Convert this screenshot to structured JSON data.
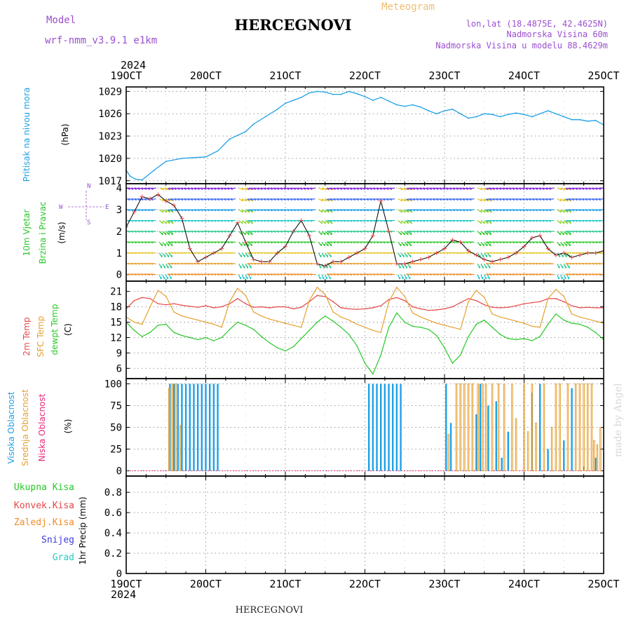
{
  "header": {
    "model_label": "Model",
    "model_name": "wrf-nmm_v3.9.1 e1km",
    "title": "HERCEGNOVI",
    "subtitle": "Meteogram",
    "lonlat": "lon,lat (18.4875E, 42.4625N)",
    "altitude": "Nadmorska Visina 60m",
    "model_altitude": "Nadmorska Visina u modelu 88.4629m",
    "footer_title": "HERCEGNOVI",
    "watermark": "made by Angel",
    "year_label": "2024"
  },
  "colors": {
    "pressure": "#1ea0e6",
    "temp2m": "#e64646",
    "sfc": "#e6a032",
    "dew": "#28c828",
    "high_cloud": "#1ea0e6",
    "mid_cloud": "#e6a032",
    "low_cloud": "#e6287a",
    "title_purple": "#9b4fd0",
    "orange_label": "#f08c28",
    "snow": "#3c3cdc",
    "hail": "#28c8c8"
  },
  "x_axis": {
    "ticks": [
      "19OCT",
      "20OCT",
      "21OCT",
      "22OCT",
      "23OCT",
      "24OCT",
      "25OCT"
    ],
    "range_days": [
      19,
      25
    ]
  },
  "chart_data": [
    {
      "id": "pressure",
      "type": "line",
      "ylabel_title": "Pritisak na nivou mora",
      "ylabel_unit": "(hPa)",
      "yticks": [
        "1017",
        "1020",
        "1023",
        "1026",
        "1029"
      ],
      "ylim": [
        1016.6,
        1029.6
      ],
      "grid": true,
      "series": [
        {
          "x": [
            19.0,
            19.05,
            19.12,
            19.2,
            19.35,
            19.5,
            19.7,
            19.85,
            20.0,
            20.15,
            20.3,
            20.5,
            20.6,
            20.75,
            20.9,
            21.0,
            21.1,
            21.2,
            21.3,
            21.4,
            21.5,
            21.6,
            21.7,
            21.8,
            21.9,
            22.0,
            22.1,
            22.2,
            22.3,
            22.4,
            22.5,
            22.6,
            22.7,
            22.8,
            22.9,
            23.0,
            23.1,
            23.2,
            23.3,
            23.4,
            23.5,
            23.6,
            23.7,
            23.8,
            23.9,
            24.0,
            24.1,
            24.2,
            24.3,
            24.4,
            24.5,
            24.6,
            24.7,
            24.8,
            24.9,
            25.0
          ],
          "values": [
            1018.4,
            1017.6,
            1017.2,
            1017.1,
            1018.4,
            1019.6,
            1020.0,
            1020.1,
            1020.2,
            1021.0,
            1022.6,
            1023.6,
            1024.6,
            1025.6,
            1026.6,
            1027.4,
            1027.8,
            1028.2,
            1028.8,
            1029.0,
            1028.9,
            1028.6,
            1028.6,
            1029.0,
            1028.7,
            1028.3,
            1027.8,
            1028.2,
            1027.7,
            1027.2,
            1027.0,
            1027.2,
            1026.9,
            1026.4,
            1026.0,
            1026.4,
            1026.6,
            1026.0,
            1025.4,
            1025.6,
            1026.0,
            1025.9,
            1025.6,
            1025.9,
            1026.1,
            1025.9,
            1025.6,
            1026.0,
            1026.4,
            1026.0,
            1025.6,
            1025.2,
            1025.2,
            1025.0,
            1025.1,
            1024.5
          ]
        }
      ]
    },
    {
      "id": "wind",
      "type": "line",
      "ylabel_title": "10m Vjetar",
      "ylabel_title2": "Brzina i Pravac",
      "ylabel_unit": "(m/s)",
      "compass": [
        "N",
        "E",
        "S",
        "W"
      ],
      "yticks": [
        "0",
        "1",
        "2",
        "3",
        "4"
      ],
      "ylim": [
        -0.3,
        4.2
      ],
      "grid": true,
      "series": [
        {
          "name": "speed",
          "x": [
            19.0,
            19.1,
            19.2,
            19.3,
            19.4,
            19.5,
            19.6,
            19.7,
            19.8,
            19.9,
            20.0,
            20.1,
            20.2,
            20.3,
            20.4,
            20.5,
            20.6,
            20.7,
            20.8,
            20.9,
            21.0,
            21.1,
            21.2,
            21.3,
            21.4,
            21.5,
            21.6,
            21.7,
            21.8,
            21.9,
            22.0,
            22.1,
            22.2,
            22.3,
            22.4,
            22.5,
            22.6,
            22.7,
            22.8,
            22.9,
            23.0,
            23.1,
            23.2,
            23.3,
            23.4,
            23.5,
            23.6,
            23.7,
            23.8,
            23.9,
            24.0,
            24.1,
            24.2,
            24.3,
            24.4,
            24.5,
            24.6,
            24.7,
            24.8,
            24.9,
            25.0
          ],
          "values": [
            2.2,
            2.9,
            3.6,
            3.5,
            3.7,
            3.4,
            3.2,
            2.6,
            1.2,
            0.6,
            0.8,
            1.0,
            1.2,
            1.8,
            2.4,
            1.5,
            0.7,
            0.6,
            0.6,
            1.0,
            1.3,
            2.0,
            2.5,
            1.8,
            0.5,
            0.4,
            0.6,
            0.6,
            0.8,
            1.0,
            1.2,
            1.8,
            3.4,
            2.0,
            0.5,
            0.5,
            0.6,
            0.7,
            0.8,
            1.0,
            1.2,
            1.6,
            1.5,
            1.1,
            0.9,
            0.7,
            0.6,
            0.7,
            0.8,
            1.0,
            1.3,
            1.7,
            1.8,
            1.2,
            0.9,
            1.0,
            0.8,
            0.9,
            1.0,
            1.0,
            1.1
          ]
        }
      ]
    },
    {
      "id": "temperature",
      "type": "line",
      "ylabel_title": "2m Temp",
      "ylabel_title2": "SFC Temp",
      "ylabel_title3": "dewpt Temp",
      "ylabel_unit": "(C)",
      "yticks": [
        "6",
        "9",
        "12",
        "15",
        "18",
        "21"
      ],
      "ylim": [
        4.0,
        23.0
      ],
      "grid": true,
      "series": [
        {
          "name": "2m Temp",
          "x": [
            19.0,
            19.1,
            19.2,
            19.3,
            19.4,
            19.5,
            19.6,
            19.7,
            19.8,
            19.9,
            20.0,
            20.1,
            20.2,
            20.3,
            20.4,
            20.5,
            20.6,
            20.7,
            20.8,
            20.9,
            21.0,
            21.1,
            21.2,
            21.3,
            21.4,
            21.5,
            21.6,
            21.7,
            21.8,
            21.9,
            22.0,
            22.1,
            22.2,
            22.3,
            22.4,
            22.5,
            22.6,
            22.7,
            22.8,
            22.9,
            23.0,
            23.1,
            23.2,
            23.3,
            23.4,
            23.5,
            23.6,
            23.7,
            23.8,
            23.9,
            24.0,
            24.1,
            24.2,
            24.3,
            24.4,
            24.5,
            24.6,
            24.7,
            24.8,
            24.9,
            25.0
          ],
          "values": [
            17.6,
            19.2,
            19.8,
            19.6,
            18.6,
            18.4,
            18.6,
            18.3,
            18.1,
            17.9,
            18.2,
            17.8,
            18.0,
            18.6,
            19.6,
            18.6,
            17.9,
            18.0,
            17.8,
            18.0,
            18.0,
            17.6,
            17.9,
            19.0,
            20.2,
            20.0,
            19.0,
            17.8,
            17.6,
            17.5,
            17.6,
            17.8,
            18.2,
            19.4,
            19.8,
            19.2,
            18.0,
            17.6,
            17.3,
            17.4,
            17.6,
            18.0,
            18.8,
            19.6,
            19.2,
            18.4,
            17.9,
            17.8,
            17.9,
            18.2,
            18.6,
            18.8,
            19.0,
            19.6,
            19.6,
            19.0,
            18.2,
            17.8,
            17.9,
            17.8,
            17.8
          ]
        },
        {
          "name": "SFC Temp",
          "x": [
            19.0,
            19.1,
            19.2,
            19.3,
            19.4,
            19.5,
            19.6,
            19.7,
            19.8,
            19.9,
            20.0,
            20.1,
            20.2,
            20.3,
            20.4,
            20.5,
            20.6,
            20.7,
            20.8,
            20.9,
            21.0,
            21.1,
            21.2,
            21.3,
            21.4,
            21.5,
            21.6,
            21.7,
            21.8,
            21.9,
            22.0,
            22.1,
            22.2,
            22.3,
            22.4,
            22.5,
            22.6,
            22.7,
            22.8,
            22.9,
            23.0,
            23.1,
            23.2,
            23.3,
            23.4,
            23.5,
            23.6,
            23.7,
            23.8,
            23.9,
            24.0,
            24.1,
            24.2,
            24.3,
            24.4,
            24.5,
            24.6,
            24.7,
            24.8,
            24.9,
            25.0
          ],
          "values": [
            16.0,
            15.0,
            14.6,
            18.0,
            21.2,
            20.0,
            17.0,
            16.2,
            15.8,
            15.4,
            15.0,
            14.6,
            14.0,
            19.0,
            21.6,
            20.2,
            17.0,
            16.2,
            15.6,
            15.2,
            14.8,
            14.4,
            14.0,
            19.2,
            21.8,
            20.4,
            17.0,
            16.0,
            15.4,
            14.6,
            14.0,
            13.4,
            13.0,
            19.0,
            21.8,
            20.0,
            16.8,
            16.0,
            15.4,
            14.8,
            14.4,
            14.0,
            13.6,
            19.0,
            21.2,
            19.8,
            16.6,
            16.0,
            15.6,
            15.2,
            14.8,
            14.2,
            14.0,
            19.6,
            21.4,
            20.0,
            16.6,
            16.0,
            15.6,
            15.2,
            14.8
          ]
        },
        {
          "name": "dewpt Temp",
          "x": [
            19.0,
            19.1,
            19.2,
            19.3,
            19.4,
            19.5,
            19.6,
            19.7,
            19.8,
            19.9,
            20.0,
            20.1,
            20.2,
            20.3,
            20.4,
            20.5,
            20.6,
            20.7,
            20.8,
            20.9,
            21.0,
            21.1,
            21.2,
            21.3,
            21.4,
            21.5,
            21.6,
            21.7,
            21.8,
            21.9,
            22.0,
            22.1,
            22.2,
            22.3,
            22.4,
            22.5,
            22.6,
            22.7,
            22.8,
            22.9,
            23.0,
            23.1,
            23.2,
            23.3,
            23.4,
            23.5,
            23.6,
            23.7,
            23.8,
            23.9,
            24.0,
            24.1,
            24.2,
            24.3,
            24.4,
            24.5,
            24.6,
            24.7,
            24.8,
            24.9,
            25.0
          ],
          "values": [
            15.0,
            13.4,
            12.2,
            13.0,
            14.4,
            14.6,
            13.0,
            12.4,
            12.0,
            11.6,
            12.0,
            11.4,
            12.0,
            13.6,
            15.0,
            14.4,
            13.6,
            12.2,
            11.0,
            10.0,
            9.4,
            10.2,
            11.8,
            13.4,
            15.0,
            16.2,
            15.2,
            14.0,
            12.6,
            10.4,
            7.0,
            4.9,
            8.6,
            14.0,
            16.8,
            15.0,
            14.2,
            14.0,
            13.6,
            12.4,
            10.0,
            7.0,
            8.6,
            12.2,
            14.6,
            15.4,
            14.0,
            12.6,
            11.8,
            11.6,
            11.8,
            11.4,
            12.2,
            14.6,
            16.6,
            15.4,
            14.8,
            14.6,
            14.0,
            13.0,
            11.6
          ]
        }
      ]
    },
    {
      "id": "cloud",
      "type": "bar",
      "ylabel_title": "Visoka Oblacnost",
      "ylabel_title2": "Srednja Oblacnost",
      "ylabel_title3": "Niska Oblacnost",
      "ylabel_unit": "(%)",
      "yticks": [
        "0",
        "25",
        "50",
        "75",
        "100"
      ],
      "ylim": [
        -6,
        106
      ],
      "grid": true,
      "series": [
        {
          "name": "Visoka Oblacnost",
          "x": [
            19.55,
            19.6,
            19.65,
            19.7,
            19.75,
            19.8,
            19.85,
            19.9,
            19.95,
            20.0,
            20.05,
            20.1,
            20.15,
            22.05,
            22.1,
            22.15,
            22.2,
            22.25,
            22.3,
            22.35,
            22.4,
            22.45,
            23.02,
            23.08,
            23.4,
            23.45,
            23.55,
            23.65,
            23.72,
            23.8,
            24.1,
            24.2,
            24.3,
            24.5,
            24.6,
            24.75,
            24.9
          ],
          "values": [
            100,
            100,
            100,
            100,
            100,
            100,
            100,
            100,
            100,
            100,
            100,
            100,
            100,
            100,
            100,
            100,
            100,
            100,
            100,
            100,
            100,
            100,
            100,
            55,
            65,
            100,
            75,
            80,
            15,
            45,
            90,
            100,
            25,
            35,
            95,
            5,
            15
          ]
        },
        {
          "name": "Srednja Oblacnost",
          "x": [
            19.54,
            19.58,
            19.62,
            19.68,
            23.05,
            23.15,
            23.2,
            23.25,
            23.3,
            23.35,
            23.42,
            23.48,
            23.52,
            23.6,
            23.68,
            23.75,
            23.85,
            23.9,
            24.0,
            24.05,
            24.1,
            24.15,
            24.25,
            24.35,
            24.4,
            24.45,
            24.55,
            24.65,
            24.7,
            24.75,
            24.8,
            24.85,
            24.88,
            24.92,
            24.96
          ],
          "values": [
            95,
            100,
            100,
            52,
            42,
            100,
            100,
            100,
            100,
            100,
            100,
            100,
            100,
            100,
            100,
            100,
            100,
            60,
            100,
            45,
            100,
            55,
            100,
            50,
            100,
            100,
            100,
            100,
            100,
            100,
            100,
            100,
            35,
            30,
            50
          ]
        },
        {
          "name": "Niska Oblacnost",
          "x": [],
          "values": []
        }
      ]
    },
    {
      "id": "precip",
      "type": "line",
      "ylabel_title": "1hr Precip",
      "ylabel_unit": "(mm)",
      "yticks": [
        "0",
        "0.2",
        "0.4",
        "0.6",
        "0.8"
      ],
      "ylim": [
        0,
        0.96
      ],
      "grid": true,
      "legend": [
        "Ukupna Kisa",
        "Konvek.Kisa",
        "Zaledj.Kisa",
        "Snijeg",
        "Grad"
      ],
      "series": []
    }
  ]
}
